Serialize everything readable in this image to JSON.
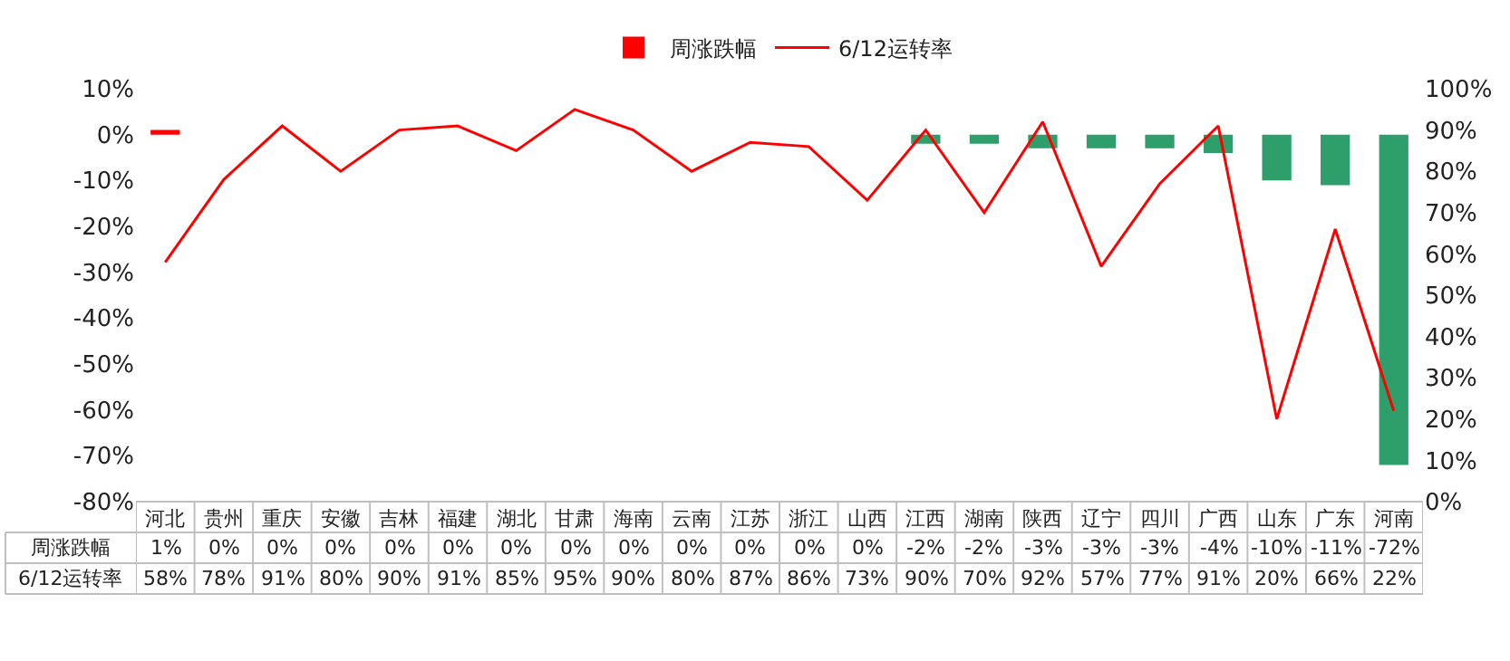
{
  "chart_data": {
    "type": "bar",
    "categories": [
      "河北",
      "贵州",
      "重庆",
      "安徽",
      "吉林",
      "福建",
      "湖北",
      "甘肃",
      "海南",
      "云南",
      "江苏",
      "浙江",
      "山西",
      "江西",
      "湖南",
      "陕西",
      "辽宁",
      "四川",
      "广西",
      "山东",
      "广东",
      "河南"
    ],
    "series": [
      {
        "name": "周涨跌幅",
        "colors": [
          "#ff0000",
          "#2e9e6b",
          "#2e9e6b",
          "#2e9e6b",
          "#2e9e6b",
          "#2e9e6b",
          "#2e9e6b",
          "#2e9e6b",
          "#2e9e6b",
          "#2e9e6b",
          "#2e9e6b",
          "#2e9e6b",
          "#2e9e6b",
          "#2e9e6b",
          "#2e9e6b",
          "#2e9e6b",
          "#2e9e6b",
          "#2e9e6b",
          "#2e9e6b",
          "#2e9e6b",
          "#2e9e6b",
          "#2e9e6b"
        ],
        "values": [
          1,
          0,
          0,
          0,
          0,
          0,
          0,
          0,
          0,
          0,
          0,
          0,
          0,
          -2,
          -2,
          -3,
          -3,
          -3,
          -4,
          -10,
          -11,
          -72
        ],
        "value_labels": [
          "1%",
          "0%",
          "0%",
          "0%",
          "0%",
          "0%",
          "0%",
          "0%",
          "0%",
          "0%",
          "0%",
          "0%",
          "0%",
          "-2%",
          "-2%",
          "-3%",
          "-3%",
          "-3%",
          "-4%",
          "-10%",
          "-11%",
          "-72%"
        ]
      },
      {
        "name": "6/12运转率",
        "type": "line",
        "axis": "y2",
        "color": "#ff0000",
        "values": [
          58,
          78,
          91,
          80,
          90,
          91,
          85,
          95,
          90,
          80,
          87,
          86,
          73,
          90,
          70,
          92,
          57,
          77,
          91,
          20,
          66,
          22
        ],
        "value_labels": [
          "58%",
          "78%",
          "91%",
          "80%",
          "90%",
          "91%",
          "85%",
          "95%",
          "90%",
          "80%",
          "87%",
          "86%",
          "73%",
          "90%",
          "70%",
          "92%",
          "57%",
          "77%",
          "91%",
          "20%",
          "66%",
          "22%"
        ]
      }
    ],
    "ylim": [
      -80,
      10
    ],
    "yticks": [
      {
        "value": -80,
        "label": "-80%"
      },
      {
        "value": -70,
        "label": "-70%"
      },
      {
        "value": -60,
        "label": "-60%"
      },
      {
        "value": -50,
        "label": "-50%"
      },
      {
        "value": -40,
        "label": "-40%"
      },
      {
        "value": -30,
        "label": "-30%"
      },
      {
        "value": -20,
        "label": "-20%"
      },
      {
        "value": -10,
        "label": "-10%"
      },
      {
        "value": 0,
        "label": "0%"
      },
      {
        "value": 10,
        "label": "10%"
      }
    ],
    "y2lim": [
      0,
      100
    ],
    "y2ticks": [
      {
        "value": 0,
        "label": "0%"
      },
      {
        "value": 10,
        "label": "10%"
      },
      {
        "value": 20,
        "label": "20%"
      },
      {
        "value": 30,
        "label": "30%"
      },
      {
        "value": 40,
        "label": "40%"
      },
      {
        "value": 50,
        "label": "50%"
      },
      {
        "value": 60,
        "label": "60%"
      },
      {
        "value": 70,
        "label": "70%"
      },
      {
        "value": 80,
        "label": "80%"
      },
      {
        "value": 90,
        "label": "90%"
      },
      {
        "value": 100,
        "label": "100%"
      }
    ],
    "grid": false,
    "legend": "top",
    "marker": "none",
    "line_style": "solid"
  }
}
